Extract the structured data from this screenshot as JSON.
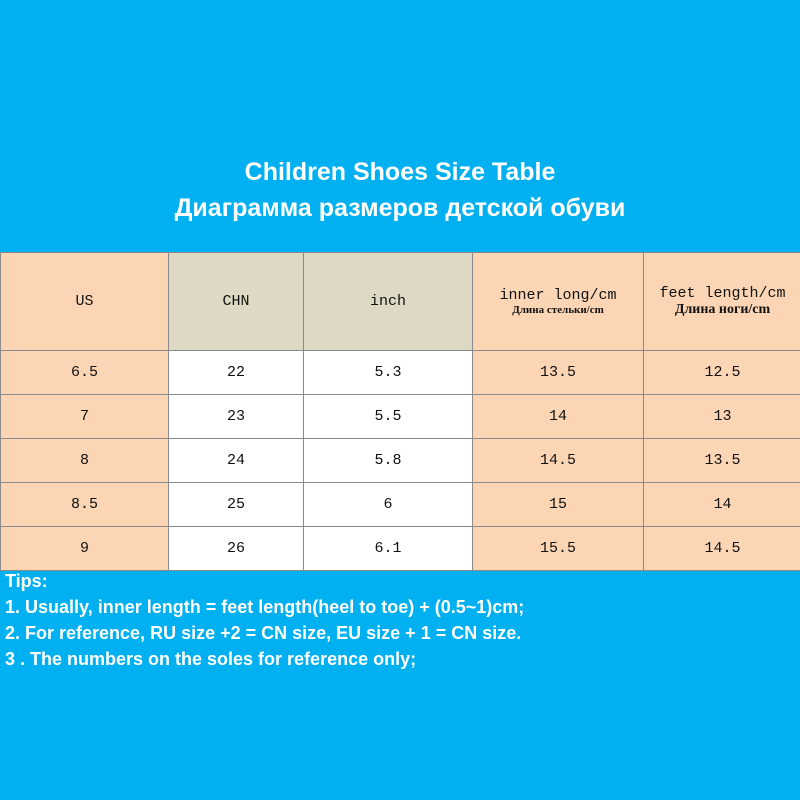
{
  "title": {
    "line1": "Children Shoes Size Table",
    "line2": "Диаграмма размеров детской обуви"
  },
  "table": {
    "header": [
      [
        "US"
      ],
      [
        "CHN"
      ],
      [
        "inch"
      ],
      [
        "inner long/cm",
        "Длина стельки/cm"
      ],
      [
        "feet length/cm",
        "Длина ноги/cm"
      ]
    ],
    "rows": [
      [
        "6.5",
        "22",
        "5.3",
        "13.5",
        "12.5"
      ],
      [
        "7",
        "23",
        "5.5",
        "14",
        "13"
      ],
      [
        "8",
        "24",
        "5.8",
        "14.5",
        "13.5"
      ],
      [
        "8.5",
        "25",
        "6",
        "15",
        "14"
      ],
      [
        "9",
        "26",
        "6.1",
        "15.5",
        "14.5"
      ]
    ]
  },
  "tips": {
    "heading": "Tips:",
    "items": [
      "1. Usually, inner length = feet length(heel to toe) + (0.5~1)cm;",
      "2. For reference, RU size +2 = CN size, EU size + 1 = CN size.",
      "3 . The numbers on the soles for reference only;"
    ]
  }
}
